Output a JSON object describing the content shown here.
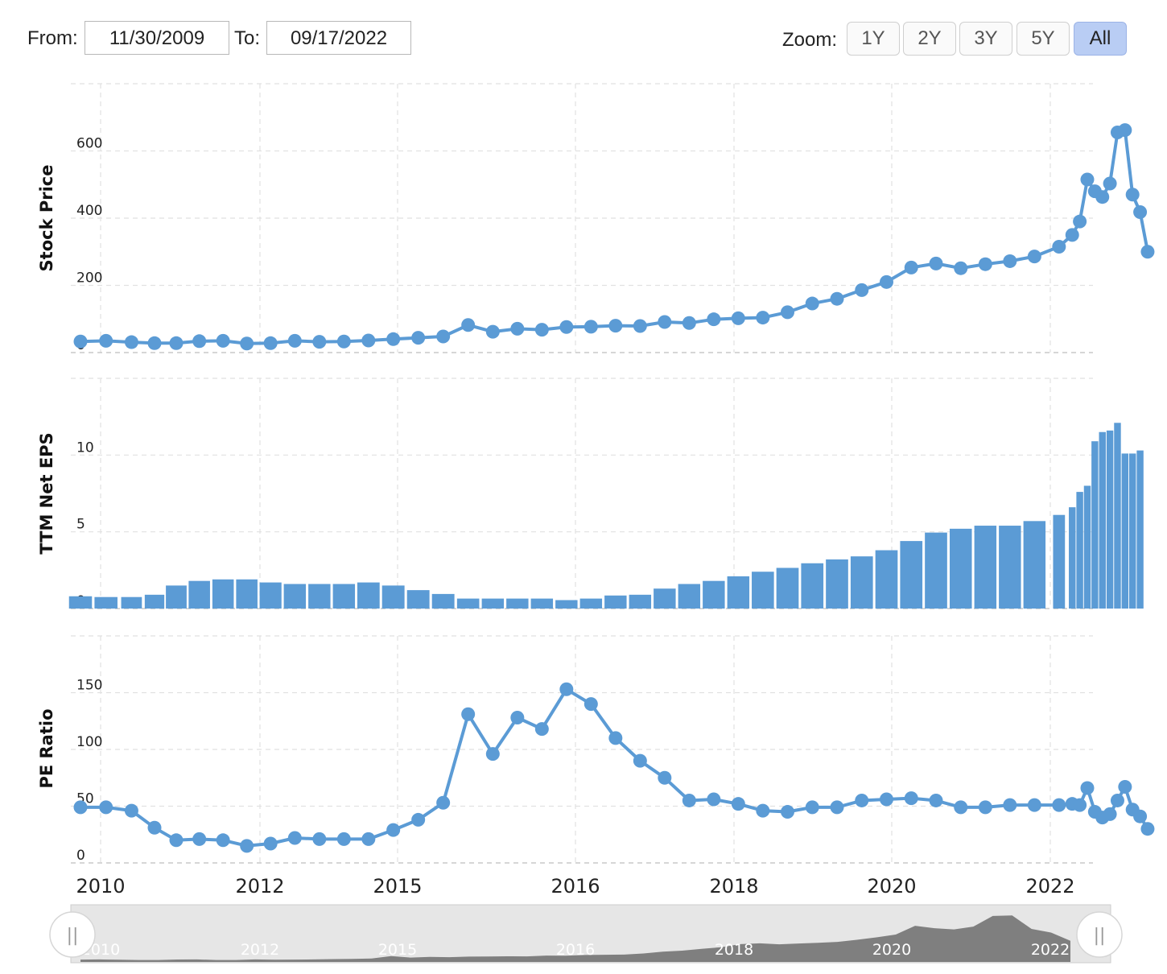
{
  "controls": {
    "from_label": "From:",
    "from_value": "11/30/2009",
    "to_label": "To:",
    "to_value": "09/17/2022",
    "zoom_label": "Zoom:",
    "zoom_options": [
      "1Y",
      "2Y",
      "3Y",
      "5Y",
      "All"
    ],
    "zoom_selected": "All"
  },
  "colors": {
    "series": "#5b9bd5",
    "navigator_fill": "#7f7f7f"
  },
  "chart_data": [
    {
      "type": "line",
      "ylabel": "Stock Price",
      "yticks": [
        0,
        200,
        400,
        600
      ],
      "ylim": [
        0,
        800
      ],
      "x": [
        "2009-12",
        "2010-03",
        "2010-06",
        "2010-09",
        "2010-12",
        "2011-03",
        "2011-06",
        "2011-09",
        "2011-12",
        "2012-03",
        "2012-06",
        "2012-09",
        "2012-12",
        "2013-03",
        "2013-06",
        "2013-09",
        "2013-12",
        "2014-03",
        "2014-06",
        "2014-09",
        "2014-12",
        "2015-03",
        "2015-06",
        "2015-09",
        "2015-12",
        "2016-03",
        "2016-06",
        "2016-09",
        "2016-12",
        "2017-03",
        "2017-06",
        "2017-09",
        "2017-12",
        "2018-03",
        "2018-06",
        "2018-09",
        "2018-12",
        "2019-03",
        "2019-06",
        "2019-09",
        "2019-12",
        "2020-03",
        "2020-06",
        "2020-09",
        "2020-12",
        "2021-03",
        "2021-06",
        "2021-09",
        "2021-12",
        "2022-03",
        "2022-06",
        "2022-09"
      ],
      "values": [
        33,
        35,
        31,
        28,
        28,
        34,
        35,
        27,
        28,
        35,
        32,
        33,
        36,
        40,
        44,
        48,
        82,
        62,
        71,
        68,
        76,
        77,
        80,
        79,
        91,
        88,
        99,
        102,
        104,
        120,
        146,
        160,
        186,
        210,
        253,
        265,
        251,
        263,
        272,
        286,
        315,
        350,
        390,
        515,
        480,
        463,
        503,
        655,
        662,
        470,
        418,
        300
      ]
    },
    {
      "type": "bar",
      "ylabel": "TTM Net EPS",
      "yticks": [
        0,
        5,
        10
      ],
      "ylim": [
        0,
        15
      ],
      "x": [
        "2009-12",
        "2010-03",
        "2010-06",
        "2010-09",
        "2010-12",
        "2011-03",
        "2011-06",
        "2011-09",
        "2011-12",
        "2012-03",
        "2012-06",
        "2012-09",
        "2012-12",
        "2013-03",
        "2013-06",
        "2013-09",
        "2013-12",
        "2014-03",
        "2014-06",
        "2014-09",
        "2014-12",
        "2015-03",
        "2015-06",
        "2015-09",
        "2015-12",
        "2016-03",
        "2016-06",
        "2016-09",
        "2016-12",
        "2017-03",
        "2017-06",
        "2017-09",
        "2017-12",
        "2018-03",
        "2018-06",
        "2018-09",
        "2018-12",
        "2019-03",
        "2019-06",
        "2019-09",
        "2019-12",
        "2020-03",
        "2020-06",
        "2020-09",
        "2020-12",
        "2021-03",
        "2021-06",
        "2021-09",
        "2021-12",
        "2022-03",
        "2022-06"
      ],
      "values": [
        0.8,
        0.75,
        0.75,
        0.9,
        1.5,
        1.8,
        1.9,
        1.9,
        1.7,
        1.6,
        1.6,
        1.6,
        1.7,
        1.5,
        1.2,
        0.95,
        0.65,
        0.65,
        0.65,
        0.65,
        0.55,
        0.65,
        0.85,
        0.9,
        1.3,
        1.6,
        1.8,
        2.1,
        2.4,
        2.65,
        2.95,
        3.2,
        3.4,
        3.8,
        4.4,
        4.95,
        5.2,
        5.4,
        5.4,
        5.7,
        6.1,
        6.6,
        7.6,
        8.0,
        10.9,
        11.5,
        11.6,
        12.1,
        10.1,
        10.1,
        10.3
      ]
    },
    {
      "type": "line",
      "ylabel": "PE Ratio",
      "yticks": [
        0,
        50,
        100,
        150
      ],
      "ylim": [
        0,
        200
      ],
      "x": [
        "2009-12",
        "2010-03",
        "2010-06",
        "2010-09",
        "2010-12",
        "2011-03",
        "2011-06",
        "2011-09",
        "2011-12",
        "2012-03",
        "2012-06",
        "2012-09",
        "2012-12",
        "2013-03",
        "2013-06",
        "2013-09",
        "2013-12",
        "2014-03",
        "2014-06",
        "2014-09",
        "2014-12",
        "2015-03",
        "2015-06",
        "2015-09",
        "2015-12",
        "2016-03",
        "2016-06",
        "2016-09",
        "2016-12",
        "2017-03",
        "2017-06",
        "2017-09",
        "2017-12",
        "2018-03",
        "2018-06",
        "2018-09",
        "2018-12",
        "2019-03",
        "2019-06",
        "2019-09",
        "2019-12",
        "2020-03",
        "2020-06",
        "2020-09",
        "2020-12",
        "2021-03",
        "2021-06",
        "2021-09",
        "2021-12",
        "2022-03",
        "2022-06",
        "2022-09"
      ],
      "values": [
        49,
        49,
        46,
        31,
        20,
        21,
        20,
        15,
        17,
        22,
        21,
        21,
        21,
        29,
        38,
        53,
        131,
        96,
        128,
        118,
        153,
        140,
        110,
        90,
        75,
        55,
        56,
        52,
        46,
        45,
        49,
        49,
        55,
        56,
        57,
        55,
        49,
        49,
        51,
        51,
        51,
        52,
        51,
        66,
        45,
        40,
        43,
        55,
        67,
        47,
        41,
        30
      ]
    }
  ],
  "x_axis": {
    "tick_labels": [
      "2010",
      "2012",
      "2015",
      "2016",
      "2018",
      "2020",
      "2022"
    ]
  },
  "navigator": {
    "tick_labels": [
      "2010",
      "2012",
      "2015",
      "2016",
      "2018",
      "2020",
      "2022"
    ],
    "handle_glyph": "||"
  }
}
